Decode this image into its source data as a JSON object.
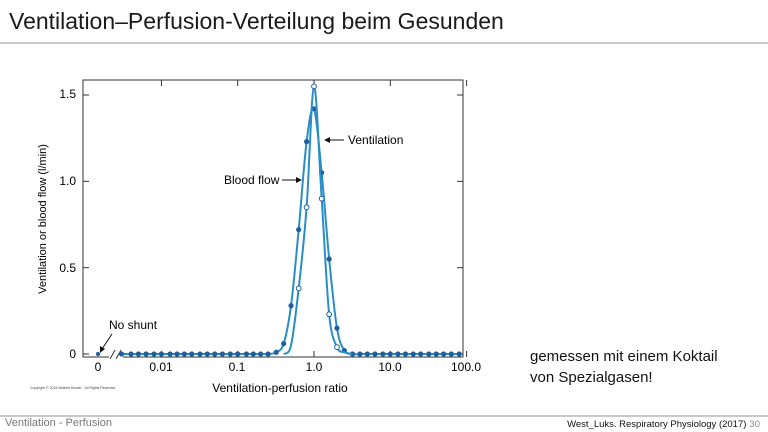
{
  "slide": {
    "title": "Ventilation–Perfusion-Verteilung beim Gesunden",
    "note_line1": "gemessen mit einem Koktail",
    "note_line2": "von Spezialgasen!",
    "footer_left": "Ventilation - Perfusion",
    "footer_source": "West_Luks. Respiratory Physiology (2017)",
    "page_number": "30"
  },
  "chart_data": {
    "type": "line",
    "xlabel": "Ventilation-perfusion ratio",
    "ylabel": "Ventilation or blood flow (l/min)",
    "xscale": "log",
    "xlim": [
      0.003,
      100
    ],
    "ylim": [
      0,
      1.6
    ],
    "x_ticks": [
      "0",
      "0.01",
      "0.1",
      "1.0",
      "10.0",
      "100.0"
    ],
    "y_ticks": [
      "0",
      "0.5",
      "1.0",
      "1.5"
    ],
    "grid": false,
    "annotations": {
      "ventilation": "Ventilation",
      "blood_flow": "Blood flow",
      "no_shunt": "No shunt"
    },
    "copyright": "Copyright © 2016 Wolters Kluwer · All Rights Reserved",
    "colors": {
      "line": "#2a8ec4",
      "marker": "#1f5f9e",
      "axis": "#333333"
    },
    "series": [
      {
        "name": "Blood flow",
        "marker": "filled",
        "x": [
          0.003,
          0.004,
          0.005,
          0.0063,
          0.008,
          0.01,
          0.013,
          0.016,
          0.02,
          0.025,
          0.032,
          0.04,
          0.05,
          0.063,
          0.08,
          0.1,
          0.13,
          0.16,
          0.2,
          0.25,
          0.32,
          0.4,
          0.5,
          0.63,
          0.8,
          1.0,
          1.26,
          1.58,
          2.0,
          2.5,
          3.2,
          4.0,
          5.0,
          6.3,
          8.0,
          10.0,
          12.6,
          15.8,
          20.0,
          25.0,
          32.0,
          40.0,
          50.0,
          63.0,
          80.0
        ],
        "y": [
          0,
          0,
          0,
          0,
          0,
          0,
          0,
          0,
          0,
          0,
          0,
          0,
          0,
          0,
          0,
          0,
          0,
          0,
          0,
          0,
          0.01,
          0.06,
          0.28,
          0.72,
          1.23,
          1.42,
          1.05,
          0.55,
          0.15,
          0.02,
          0,
          0,
          0,
          0,
          0,
          0,
          0,
          0,
          0,
          0,
          0,
          0,
          0,
          0,
          0
        ]
      },
      {
        "name": "Ventilation",
        "marker": "open",
        "x": [
          0.63,
          0.8,
          1.0,
          1.26,
          1.58,
          2.0
        ],
        "y": [
          0.38,
          0.85,
          1.55,
          0.9,
          0.23,
          0.04
        ]
      }
    ]
  }
}
